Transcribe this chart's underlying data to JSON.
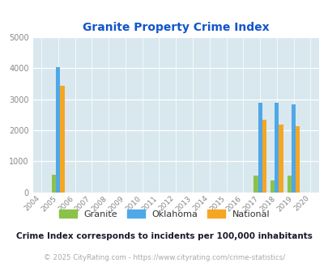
{
  "title": "Granite Property Crime Index",
  "years": [
    2004,
    2005,
    2006,
    2007,
    2008,
    2009,
    2010,
    2011,
    2012,
    2013,
    2014,
    2015,
    2016,
    2017,
    2018,
    2019,
    2020
  ],
  "granite": [
    0,
    560,
    0,
    0,
    0,
    0,
    0,
    0,
    0,
    0,
    0,
    0,
    0,
    540,
    370,
    530,
    0
  ],
  "oklahoma": [
    0,
    4050,
    0,
    0,
    0,
    0,
    0,
    0,
    0,
    0,
    0,
    0,
    0,
    2880,
    2880,
    2830,
    0
  ],
  "national": [
    0,
    3440,
    0,
    0,
    0,
    0,
    0,
    0,
    0,
    0,
    0,
    0,
    0,
    2350,
    2190,
    2130,
    0
  ],
  "granite_color": "#8bc34a",
  "oklahoma_color": "#4fa8e8",
  "national_color": "#f5a623",
  "bg_color": "#d8e8ee",
  "ylim": [
    0,
    5000
  ],
  "yticks": [
    0,
    1000,
    2000,
    3000,
    4000,
    5000
  ],
  "bar_width": 0.25,
  "subtitle": "Crime Index corresponds to incidents per 100,000 inhabitants",
  "footer": "© 2025 CityRating.com - https://www.cityrating.com/crime-statistics/",
  "title_color": "#1155cc",
  "subtitle_color": "#1a1a2e",
  "footer_color": "#aaaaaa",
  "legend_labels": [
    "Granite",
    "Oklahoma",
    "National"
  ]
}
